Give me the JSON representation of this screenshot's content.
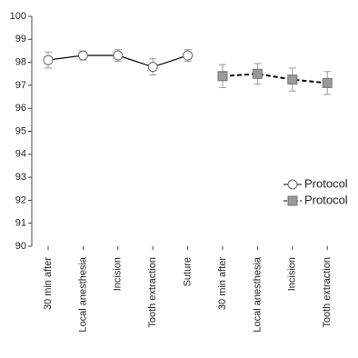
{
  "chart_data": {
    "type": "line",
    "categories": [
      "30 min after",
      "Local anesthesia",
      "Incision",
      "Tooth extraction",
      "Suture",
      "30 min after",
      "Local anesthesia",
      "Incision",
      "Tooth extraction"
    ],
    "series": [
      {
        "name": "Protocol",
        "color": "#ffffff",
        "marker": "circle",
        "dashed": false,
        "values": [
          98.1,
          98.3,
          98.3,
          97.8,
          98.3,
          null,
          null,
          null,
          null
        ],
        "errors": [
          0.35,
          0.2,
          0.25,
          0.35,
          0.25,
          null,
          null,
          null,
          null
        ]
      },
      {
        "name": "Protocol",
        "color": "#999999",
        "marker": "square",
        "dashed": true,
        "values": [
          null,
          null,
          null,
          null,
          null,
          97.4,
          97.5,
          97.25,
          97.1
        ],
        "errors": [
          null,
          null,
          null,
          null,
          null,
          0.5,
          0.45,
          0.5,
          0.5
        ]
      }
    ],
    "ylim": [
      90,
      100
    ],
    "yticks": [
      90,
      91,
      92,
      93,
      94,
      95,
      96,
      97,
      98,
      99,
      100
    ],
    "legend": "right"
  }
}
